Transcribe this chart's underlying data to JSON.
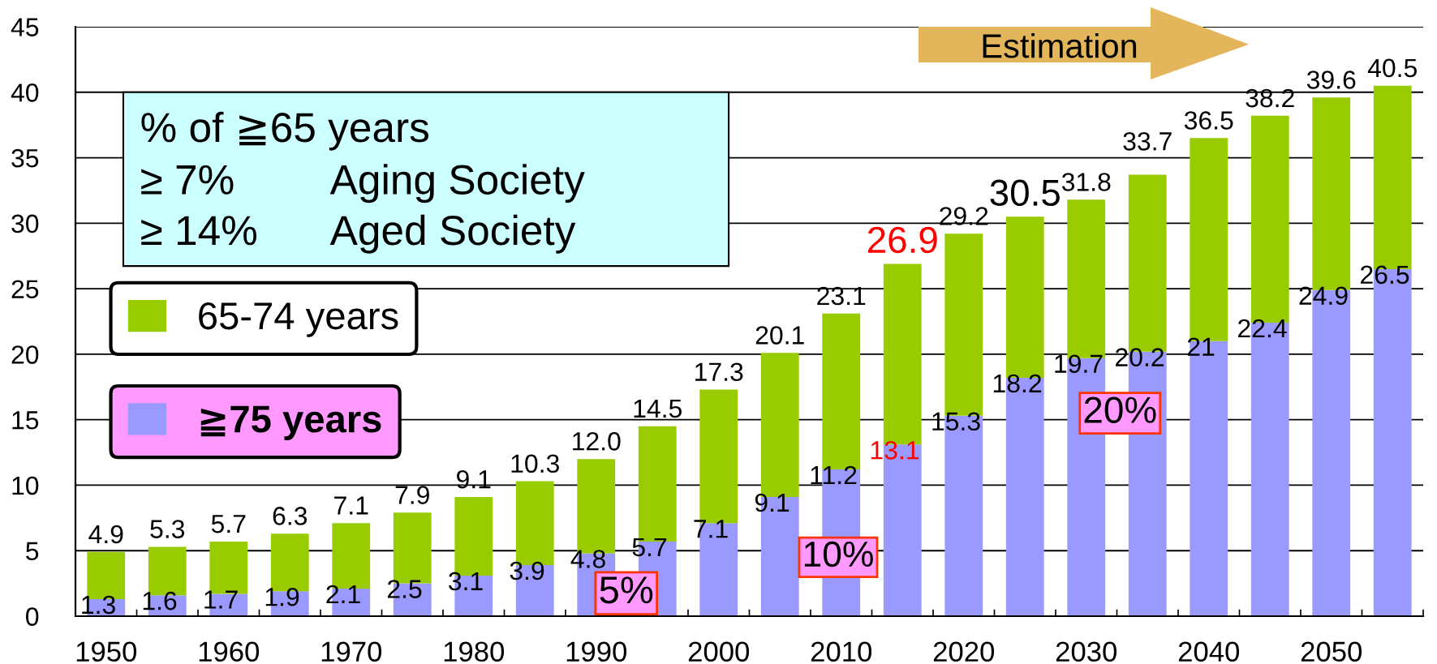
{
  "chart_data": {
    "type": "bar",
    "stacked": true,
    "categories": [
      "1950",
      null,
      "1960",
      null,
      "1970",
      null,
      "1980",
      null,
      "1990",
      null,
      "2000",
      null,
      "2010",
      null,
      "2020",
      null,
      "2030",
      null,
      "2040",
      null,
      "2050",
      null
    ],
    "series": [
      {
        "name": "≧75 years",
        "color": "#9999ff",
        "values": [
          1.3,
          1.6,
          1.7,
          1.9,
          2.1,
          2.5,
          3.1,
          3.9,
          4.8,
          5.7,
          7.1,
          9.1,
          11.2,
          13.1,
          15.3,
          18.2,
          19.7,
          20.2,
          21,
          22.4,
          24.9,
          26.5
        ],
        "value_labels": [
          "1.3",
          "1.6",
          "1.7",
          "1.9",
          "2.1",
          "2.5",
          "3.1",
          "3.9",
          "4.8",
          "5.7",
          "7.1",
          "9.1",
          "11.2",
          "13.1",
          "15.3",
          "18.2",
          "19.7",
          "20.2",
          "21",
          "22.4",
          "24.9",
          "26.5"
        ]
      },
      {
        "name": "65-74 years",
        "color": "#99cc00",
        "values": [
          3.6,
          3.7,
          4.0,
          4.4,
          5.0,
          5.4,
          6.0,
          6.4,
          7.2,
          8.8,
          10.2,
          11.0,
          11.9,
          13.8,
          13.9,
          12.3,
          12.1,
          13.5,
          15.5,
          15.8,
          14.7,
          14.0
        ]
      }
    ],
    "totals": [
      "4.9",
      "5.3",
      "5.7",
      "6.3",
      "7.1",
      "7.9",
      "9.1",
      "10.3",
      "12.0",
      "14.5",
      "17.3",
      "20.1",
      "23.1",
      "26.9",
      "29.2",
      "30.5",
      "31.8",
      "33.7",
      "36.5",
      "38.2",
      "39.6",
      "40.5"
    ],
    "ylim": [
      0,
      45
    ],
    "yticks": [
      0,
      5,
      10,
      15,
      20,
      25,
      30,
      35,
      40,
      45
    ],
    "grid": "y",
    "legend": "left",
    "annotations": [
      "% of ≧65 years",
      "≥ 7%",
      "Aging Society",
      "≥ 14%",
      "Aged Society",
      "Estimation",
      "5%",
      "10%",
      "20%"
    ]
  }
}
